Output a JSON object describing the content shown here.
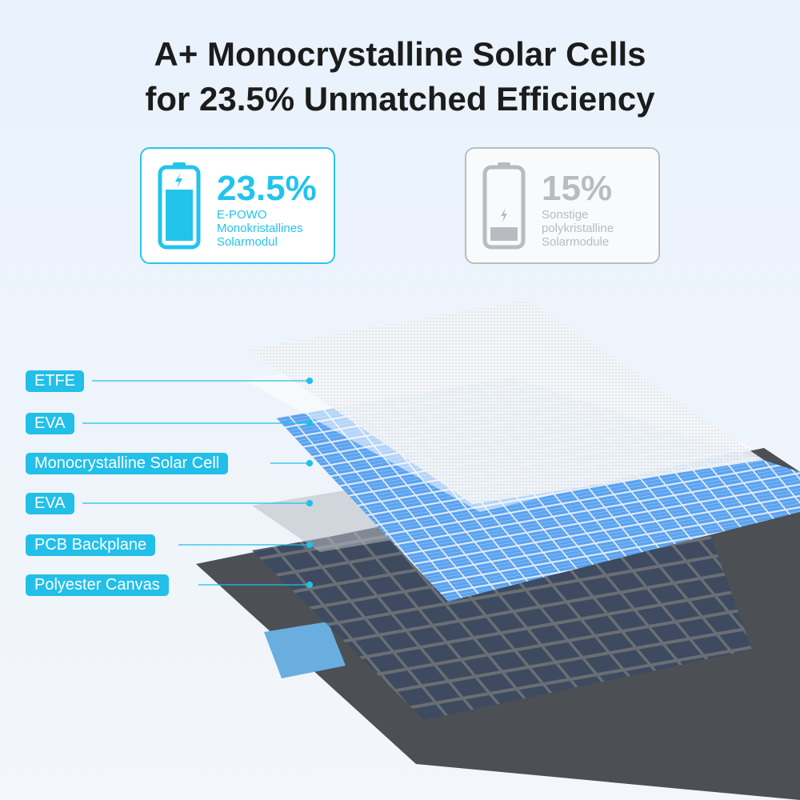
{
  "title": {
    "line1": "A+ Monocrystalline Solar Cells",
    "line2": "for 23.5% Unmatched Efficiency"
  },
  "comparison": [
    {
      "value": "23.5%",
      "brand": "E-POWO",
      "line2": "Monokristallines",
      "line3": "Solarmodul",
      "color": "#22c4ec",
      "charge_level": 0.75
    },
    {
      "value": "15%",
      "brand": "Sonstige",
      "line2": "polykristalline",
      "line3": "Solarmodule",
      "color": "#b8bcc0",
      "charge_level": 0.2
    }
  ],
  "layers": [
    {
      "label": "ETFE"
    },
    {
      "label": "EVA"
    },
    {
      "label": "Monocrystalline Solar Cell"
    },
    {
      "label": "EVA"
    },
    {
      "label": "PCB Backplane"
    },
    {
      "label": "Polyester Canvas"
    }
  ],
  "colors": {
    "accent": "#22bfe8",
    "cell_blue": "#5aa3f0",
    "canvas": "#4a4d52"
  }
}
